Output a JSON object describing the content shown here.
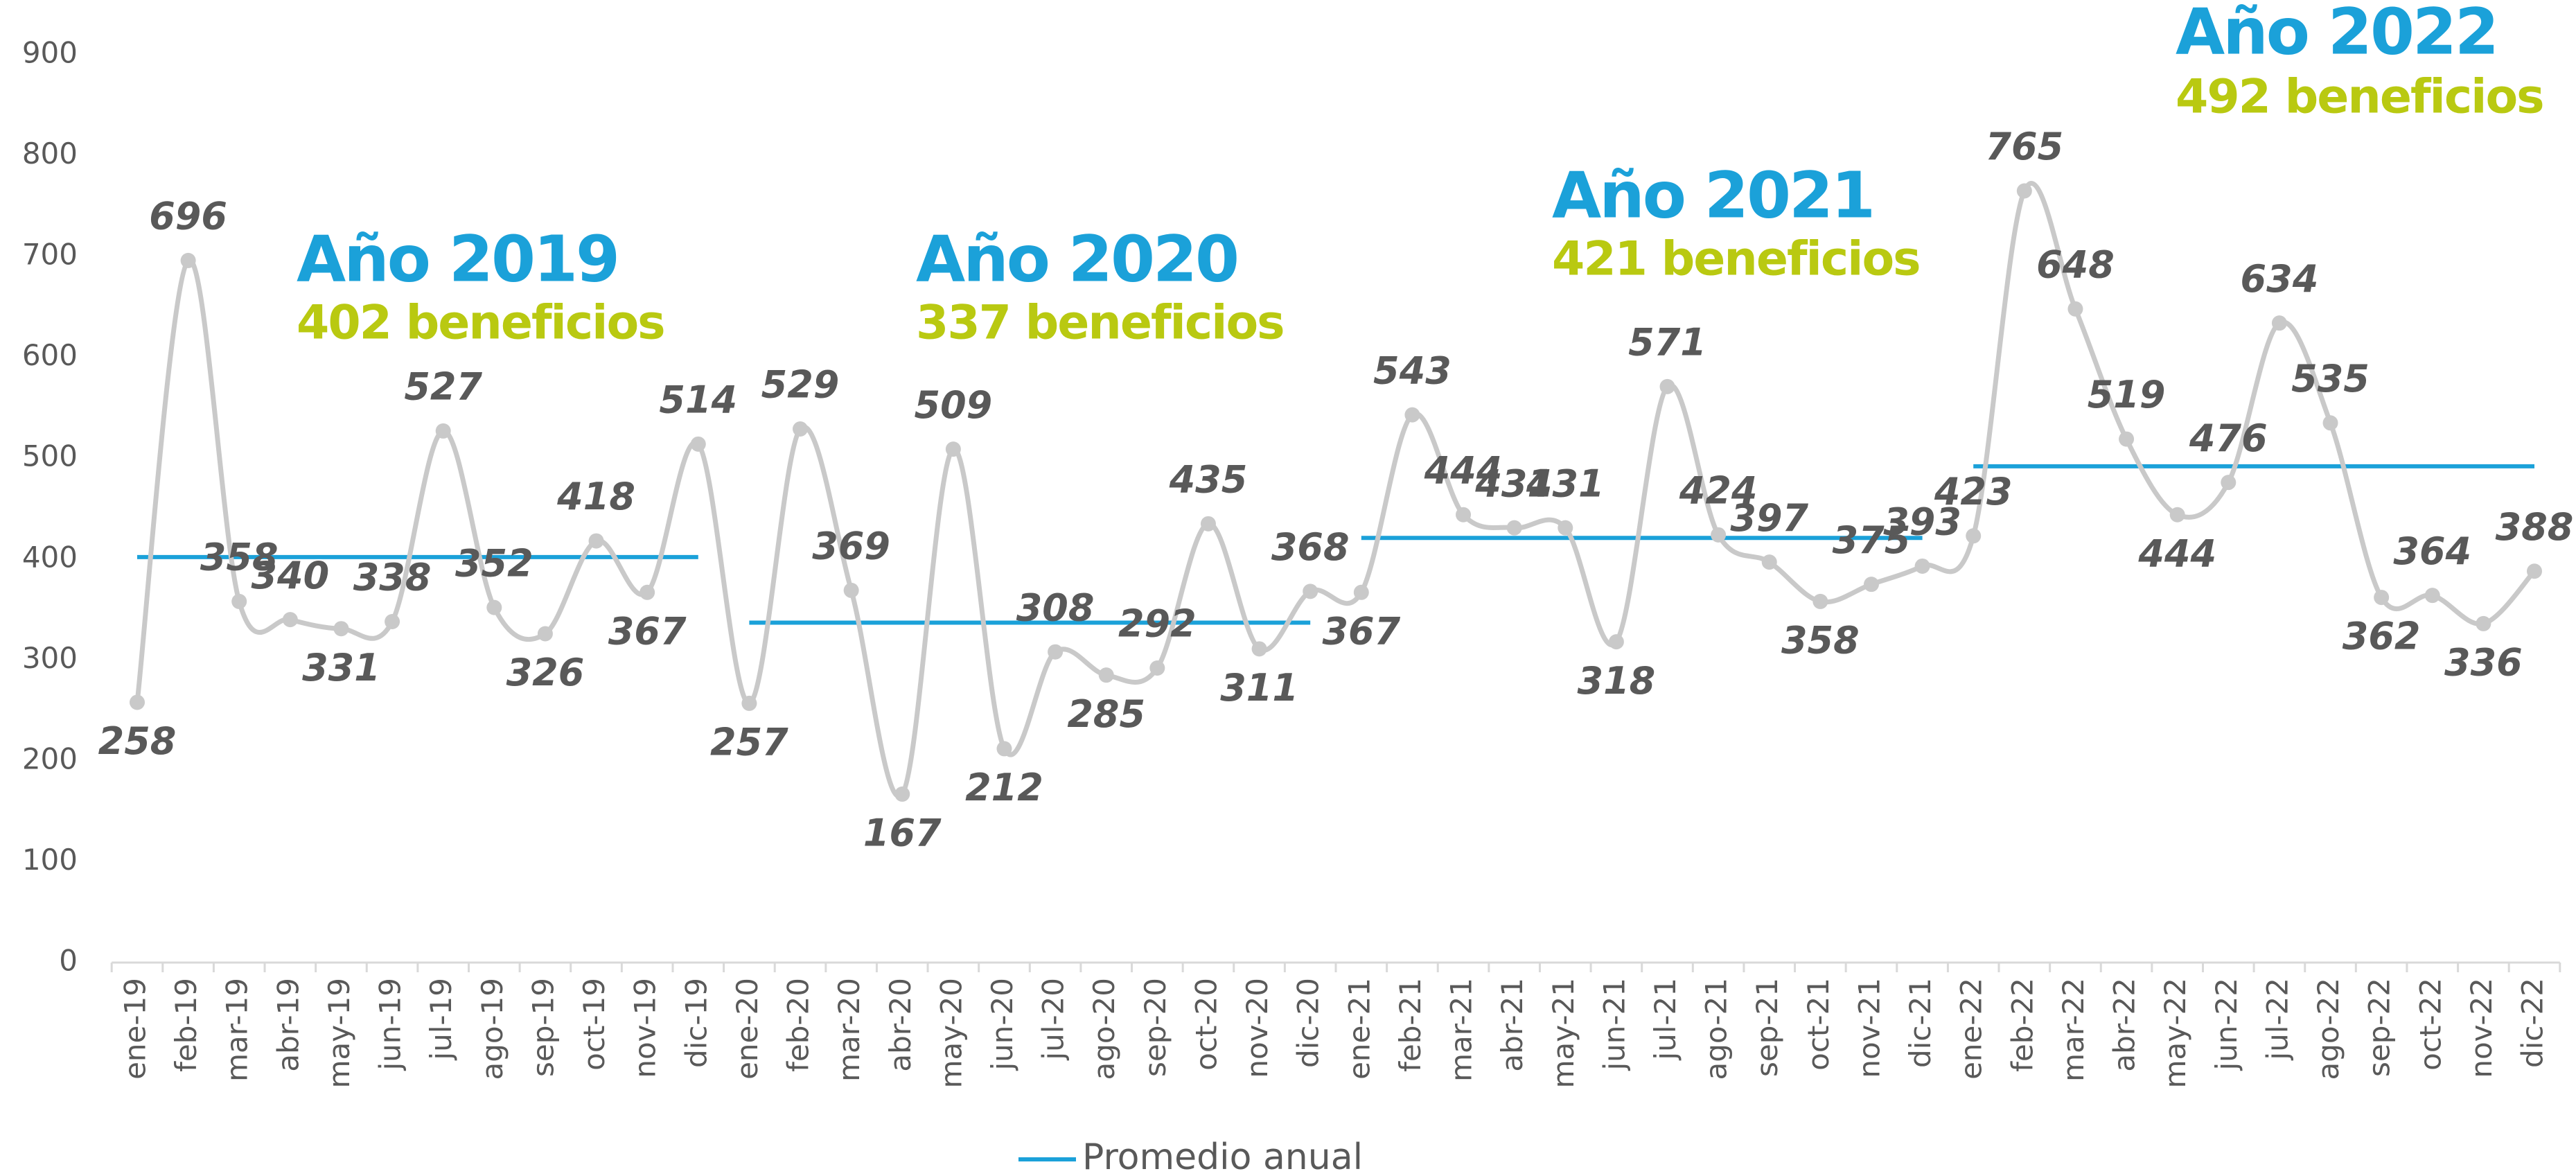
{
  "chart_data": {
    "type": "line",
    "categories": [
      "ene-19",
      "feb-19",
      "mar-19",
      "abr-19",
      "may-19",
      "jun-19",
      "jul-19",
      "ago-19",
      "sep-19",
      "oct-19",
      "nov-19",
      "dic-19",
      "ene-20",
      "feb-20",
      "mar-20",
      "abr-20",
      "may-20",
      "jun-20",
      "jul-20",
      "ago-20",
      "sep-20",
      "oct-20",
      "nov-20",
      "dic-20",
      "ene-21",
      "feb-21",
      "mar-21",
      "abr-21",
      "may-21",
      "jun-21",
      "jul-21",
      "ago-21",
      "sep-21",
      "oct-21",
      "nov-21",
      "dic-21",
      "ene-22",
      "feb-22",
      "mar-22",
      "abr-22",
      "may-22",
      "jun-22",
      "jul-22",
      "ago-22",
      "sep-22",
      "oct-22",
      "nov-22",
      "dic-22"
    ],
    "values": [
      258,
      696,
      358,
      340,
      331,
      338,
      527,
      352,
      326,
      418,
      367,
      514,
      257,
      529,
      369,
      167,
      509,
      212,
      308,
      285,
      292,
      435,
      311,
      368,
      367,
      543,
      444,
      431,
      431,
      318,
      571,
      424,
      397,
      358,
      375,
      393,
      423,
      765,
      648,
      519,
      444,
      476,
      634,
      535,
      362,
      364,
      336,
      388
    ],
    "color": "#c9c9c9",
    "ylim": [
      0,
      900
    ],
    "yticks": [
      0,
      100,
      200,
      300,
      400,
      500,
      600,
      700,
      800,
      900
    ],
    "grid": false,
    "average": {
      "name": "Promedio anual",
      "color": "#1ba1d9",
      "segments": [
        {
          "value": 402,
          "title": "Año 2019",
          "subtitle": "402 beneficios"
        },
        {
          "value": 337,
          "title": "Año 2020",
          "subtitle": "337 beneficios"
        },
        {
          "value": 421,
          "title": "Año 2021",
          "subtitle": "421 beneficios"
        },
        {
          "value": 492,
          "title": "Año 2022",
          "subtitle": "492 beneficios"
        }
      ]
    },
    "legend": "bottom"
  }
}
